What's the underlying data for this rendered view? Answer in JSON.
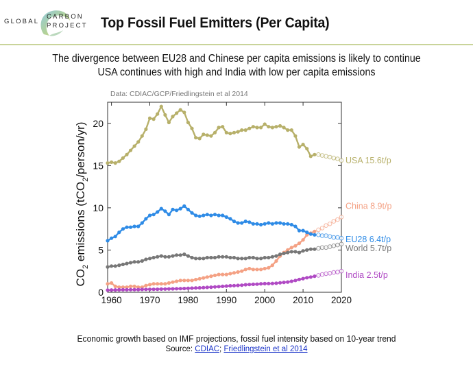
{
  "logo": {
    "line1": "GLOBAL",
    "line2": "CARBON",
    "line3": "PROJECT"
  },
  "title": "Top Fossil Fuel Emitters (Per Capita)",
  "subtitle_line1": "The divergence between EU28 and Chinese per capita emissions is likely to continue",
  "subtitle_line2": "USA continues with high and India with low per capita emissions",
  "footer": {
    "note": "Economic growth based on IMF projections, fossil fuel intensity based on 10-year trend",
    "source_prefix": "Source: ",
    "source_link1": "CDIAC",
    "source_sep": "; ",
    "source_link2": "Friedlingstein et al 2014"
  },
  "colors": {
    "USA": "#b7b06a",
    "China": "#f4a184",
    "EU28": "#2e8be6",
    "World": "#777777",
    "India": "#b04ac4",
    "header_line": "#c9d49a"
  },
  "chart_data": {
    "type": "line",
    "data_credit": "Data: CDIAC/GCP/Friedlingstein et al 2014",
    "ylabel_parts": [
      "CO",
      "2",
      " emissions (tCO",
      "2",
      "/person/yr)"
    ],
    "xlim": [
      1959,
      2020
    ],
    "ylim": [
      0,
      22.5
    ],
    "xticks": [
      1960,
      1970,
      1980,
      1990,
      2000,
      2010,
      2020
    ],
    "yticks": [
      0,
      5,
      10,
      15,
      20
    ],
    "grid": false,
    "series": [
      {
        "name": "USA",
        "end_label": "USA 15.6t/p",
        "color": "USA",
        "x_hist": [
          1959,
          1960,
          1961,
          1962,
          1963,
          1964,
          1965,
          1966,
          1967,
          1968,
          1969,
          1970,
          1971,
          1972,
          1973,
          1974,
          1975,
          1976,
          1977,
          1978,
          1979,
          1980,
          1981,
          1982,
          1983,
          1984,
          1985,
          1986,
          1987,
          1988,
          1989,
          1990,
          1991,
          1992,
          1993,
          1994,
          1995,
          1996,
          1997,
          1998,
          1999,
          2000,
          2001,
          2002,
          2003,
          2004,
          2005,
          2006,
          2007,
          2008,
          2009,
          2010,
          2011,
          2012,
          2013
        ],
        "y_hist": [
          15.3,
          15.4,
          15.3,
          15.5,
          15.9,
          16.3,
          16.8,
          17.3,
          17.8,
          18.5,
          19.3,
          20.6,
          20.5,
          21.1,
          22.0,
          21.0,
          20.1,
          20.8,
          21.2,
          21.6,
          21.3,
          20.1,
          19.4,
          18.3,
          18.2,
          18.7,
          18.6,
          18.5,
          18.9,
          19.5,
          19.6,
          18.9,
          18.8,
          18.9,
          19.0,
          19.2,
          19.2,
          19.4,
          19.6,
          19.5,
          19.5,
          19.9,
          19.6,
          19.5,
          19.6,
          19.7,
          19.5,
          19.2,
          19.2,
          18.5,
          17.2,
          17.5,
          17.0,
          16.1,
          16.3
        ],
        "x_proj": [
          2014,
          2015,
          2016,
          2017,
          2018,
          2019,
          2020
        ],
        "y_proj": [
          16.3,
          16.2,
          16.1,
          16.0,
          15.9,
          15.8,
          15.6
        ]
      },
      {
        "name": "China",
        "end_label": "China 8.9t/p",
        "color": "China",
        "x_hist": [
          1959,
          1960,
          1961,
          1962,
          1963,
          1964,
          1965,
          1966,
          1967,
          1968,
          1969,
          1970,
          1971,
          1972,
          1973,
          1974,
          1975,
          1976,
          1977,
          1978,
          1979,
          1980,
          1981,
          1982,
          1983,
          1984,
          1985,
          1986,
          1987,
          1988,
          1989,
          1990,
          1991,
          1992,
          1993,
          1994,
          1995,
          1996,
          1997,
          1998,
          1999,
          2000,
          2001,
          2002,
          2003,
          2004,
          2005,
          2006,
          2007,
          2008,
          2009,
          2010,
          2011,
          2012,
          2013
        ],
        "y_hist": [
          1.0,
          1.1,
          0.7,
          0.6,
          0.6,
          0.6,
          0.7,
          0.7,
          0.6,
          0.6,
          0.8,
          0.9,
          1.0,
          1.0,
          1.0,
          1.0,
          1.1,
          1.2,
          1.3,
          1.4,
          1.4,
          1.4,
          1.4,
          1.5,
          1.6,
          1.7,
          1.8,
          1.9,
          2.0,
          2.1,
          2.1,
          2.1,
          2.2,
          2.3,
          2.4,
          2.5,
          2.7,
          2.8,
          2.7,
          2.7,
          2.7,
          2.8,
          2.9,
          3.2,
          3.7,
          4.3,
          4.7,
          5.0,
          5.3,
          5.5,
          5.8,
          6.2,
          6.8,
          7.0,
          7.2
        ],
        "x_proj": [
          2014,
          2015,
          2016,
          2017,
          2018,
          2019,
          2020
        ],
        "y_proj": [
          7.4,
          7.6,
          7.9,
          8.1,
          8.4,
          8.6,
          8.9
        ]
      },
      {
        "name": "EU28",
        "end_label": "EU28 6.4t/p",
        "color": "EU28",
        "x_hist": [
          1959,
          1960,
          1961,
          1962,
          1963,
          1964,
          1965,
          1966,
          1967,
          1968,
          1969,
          1970,
          1971,
          1972,
          1973,
          1974,
          1975,
          1976,
          1977,
          1978,
          1979,
          1980,
          1981,
          1982,
          1983,
          1984,
          1985,
          1986,
          1987,
          1988,
          1989,
          1990,
          1991,
          1992,
          1993,
          1994,
          1995,
          1996,
          1997,
          1998,
          1999,
          2000,
          2001,
          2002,
          2003,
          2004,
          2005,
          2006,
          2007,
          2008,
          2009,
          2010,
          2011,
          2012,
          2013
        ],
        "y_hist": [
          6.1,
          6.4,
          6.6,
          7.1,
          7.5,
          7.7,
          7.7,
          7.8,
          7.8,
          8.2,
          8.7,
          9.1,
          9.2,
          9.5,
          9.9,
          9.6,
          9.2,
          9.8,
          9.7,
          9.9,
          10.2,
          9.8,
          9.4,
          9.1,
          9.0,
          9.1,
          9.2,
          9.1,
          9.2,
          9.1,
          9.1,
          8.9,
          8.7,
          8.4,
          8.2,
          8.2,
          8.4,
          8.3,
          8.1,
          8.1,
          8.0,
          8.1,
          8.2,
          8.1,
          8.2,
          8.2,
          8.1,
          8.1,
          8.0,
          7.8,
          7.3,
          7.3,
          7.1,
          6.9,
          6.8
        ],
        "x_proj": [
          2014,
          2015,
          2016,
          2017,
          2018,
          2019,
          2020
        ],
        "y_proj": [
          6.8,
          6.7,
          6.7,
          6.6,
          6.5,
          6.5,
          6.4
        ]
      },
      {
        "name": "World",
        "end_label": "World 5.7t/p",
        "color": "World",
        "x_hist": [
          1959,
          1960,
          1961,
          1962,
          1963,
          1964,
          1965,
          1966,
          1967,
          1968,
          1969,
          1970,
          1971,
          1972,
          1973,
          1974,
          1975,
          1976,
          1977,
          1978,
          1979,
          1980,
          1981,
          1982,
          1983,
          1984,
          1985,
          1986,
          1987,
          1988,
          1989,
          1990,
          1991,
          1992,
          1993,
          1994,
          1995,
          1996,
          1997,
          1998,
          1999,
          2000,
          2001,
          2002,
          2003,
          2004,
          2005,
          2006,
          2007,
          2008,
          2009,
          2010,
          2011,
          2012,
          2013
        ],
        "y_hist": [
          3.0,
          3.1,
          3.1,
          3.2,
          3.3,
          3.4,
          3.5,
          3.6,
          3.6,
          3.7,
          3.9,
          4.0,
          4.1,
          4.2,
          4.3,
          4.2,
          4.2,
          4.3,
          4.4,
          4.4,
          4.5,
          4.3,
          4.1,
          4.0,
          4.0,
          4.0,
          4.1,
          4.1,
          4.1,
          4.2,
          4.2,
          4.2,
          4.1,
          4.1,
          4.0,
          4.0,
          4.0,
          4.1,
          4.1,
          4.0,
          4.0,
          4.1,
          4.1,
          4.2,
          4.3,
          4.5,
          4.6,
          4.7,
          4.8,
          4.8,
          4.7,
          4.9,
          5.0,
          5.1,
          5.1
        ],
        "x_proj": [
          2014,
          2015,
          2016,
          2017,
          2018,
          2019,
          2020
        ],
        "y_proj": [
          5.2,
          5.3,
          5.3,
          5.4,
          5.5,
          5.6,
          5.7
        ]
      },
      {
        "name": "India",
        "end_label": "India 2.5t/p",
        "color": "India",
        "x_hist": [
          1959,
          1960,
          1961,
          1962,
          1963,
          1964,
          1965,
          1966,
          1967,
          1968,
          1969,
          1970,
          1971,
          1972,
          1973,
          1974,
          1975,
          1976,
          1977,
          1978,
          1979,
          1980,
          1981,
          1982,
          1983,
          1984,
          1985,
          1986,
          1987,
          1988,
          1989,
          1990,
          1991,
          1992,
          1993,
          1994,
          1995,
          1996,
          1997,
          1998,
          1999,
          2000,
          2001,
          2002,
          2003,
          2004,
          2005,
          2006,
          2007,
          2008,
          2009,
          2010,
          2011,
          2012,
          2013
        ],
        "y_hist": [
          0.25,
          0.27,
          0.28,
          0.29,
          0.3,
          0.3,
          0.31,
          0.31,
          0.32,
          0.33,
          0.34,
          0.35,
          0.35,
          0.36,
          0.37,
          0.38,
          0.4,
          0.41,
          0.42,
          0.43,
          0.45,
          0.47,
          0.49,
          0.51,
          0.53,
          0.55,
          0.58,
          0.6,
          0.63,
          0.67,
          0.7,
          0.73,
          0.77,
          0.79,
          0.81,
          0.84,
          0.89,
          0.92,
          0.94,
          0.96,
          1.0,
          1.02,
          1.03,
          1.04,
          1.07,
          1.12,
          1.17,
          1.21,
          1.3,
          1.4,
          1.52,
          1.62,
          1.72,
          1.8,
          1.9
        ],
        "x_proj": [
          2014,
          2015,
          2016,
          2017,
          2018,
          2019,
          2020
        ],
        "y_proj": [
          2.0,
          2.1,
          2.2,
          2.25,
          2.35,
          2.4,
          2.5
        ]
      }
    ]
  }
}
